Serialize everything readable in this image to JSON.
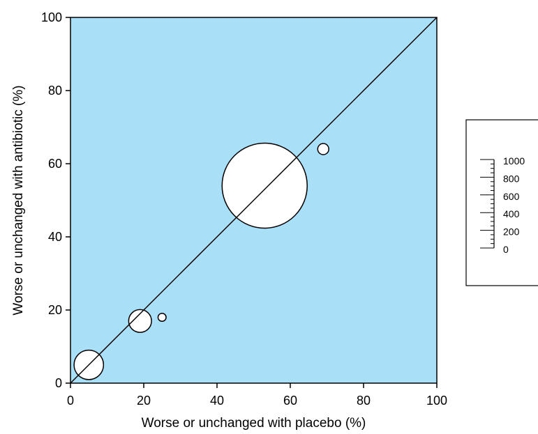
{
  "chart_data": {
    "type": "scatter",
    "variant": "bubble",
    "xlabel": "Worse or unchanged with placebo (%)",
    "ylabel": "Worse or unchanged with antibiotic (%)",
    "xlim": [
      0,
      100
    ],
    "ylim": [
      0,
      100
    ],
    "x_ticks": [
      0,
      20,
      40,
      60,
      80,
      100
    ],
    "y_ticks": [
      0,
      20,
      40,
      60,
      80,
      100
    ],
    "grid": false,
    "plot_background": "#aadff8",
    "bubble_fill": "#ffffff",
    "bubble_stroke": "#000000",
    "reference_line": {
      "type": "identity",
      "from": [
        0,
        0
      ],
      "to": [
        100,
        100
      ]
    },
    "points": [
      {
        "x": 5,
        "y": 5,
        "size": 120
      },
      {
        "x": 19,
        "y": 17,
        "size": 72
      },
      {
        "x": 25,
        "y": 18,
        "size": 9
      },
      {
        "x": 53,
        "y": 54,
        "size": 1000
      },
      {
        "x": 69,
        "y": 64,
        "size": 17
      }
    ],
    "size_legend": {
      "placement": "right",
      "ticks": [
        0,
        200,
        400,
        600,
        800,
        1000
      ],
      "labels": [
        "1000",
        "800",
        "600",
        "400",
        "200",
        "0"
      ],
      "minor_step": 50
    }
  }
}
